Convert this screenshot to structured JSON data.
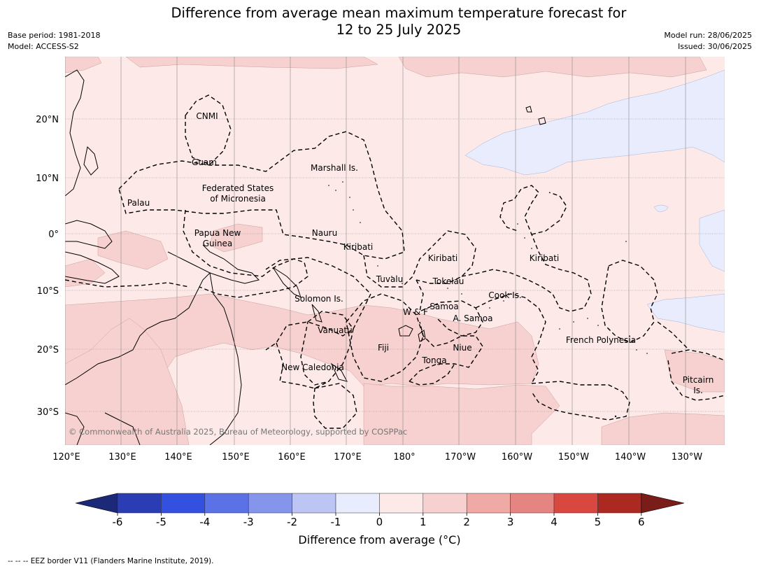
{
  "title_line1": "Difference from average mean maximum temperature forecast for",
  "title_line2": "12 to 25 July 2025",
  "base_period": "Base period: 1981-2018",
  "model": "Model: ACCESS-S2",
  "model_run": "Model run: 28/06/2025",
  "issued": "Issued: 30/06/2025",
  "copyright": "© Commonwealth of Australia 2025, Bureau of Meteorology, supported by COSPPac",
  "lat_labels": [
    "20°N",
    "10°N",
    "0°",
    "10°S",
    "20°S",
    "30°S"
  ],
  "lon_labels": [
    "120°E",
    "130°E",
    "140°E",
    "150°E",
    "160°E",
    "170°E",
    "180°",
    "170°W",
    "160°W",
    "150°W",
    "140°W",
    "130°W"
  ],
  "regions": {
    "cnmi": "CNMI",
    "guam": "Guam",
    "marshall": "Marshall Is.",
    "fsm1": "Federated States",
    "fsm2": "of Micronesia",
    "palau": "Palau",
    "png1": "Papua New",
    "png2": "Guinea",
    "nauru": "Nauru",
    "kiribati_w": "Kiribati",
    "kiribati_c": "Kiribati",
    "kiribati_e": "Kiribati",
    "tuvalu": "Tuvalu",
    "tokelau": "Tokelau",
    "solomon": "Solomon Is.",
    "wf": "W & F",
    "samoa": "Samoa",
    "asamoa": "A. Samoa",
    "cook": "Cook Is.",
    "vanuatu": "Vanuatu",
    "fiji": "Fiji",
    "niue": "Niue",
    "tonga": "Tonga",
    "newcal": "New Caledonia",
    "frpoly": "French Polynesia",
    "pitcairn1": "Pitcairn",
    "pitcairn2": "Is."
  },
  "colorbar": {
    "ticks": [
      "-6",
      "-5",
      "-4",
      "-3",
      "-2",
      "-1",
      "0",
      "1",
      "2",
      "3",
      "4",
      "5",
      "6"
    ],
    "colors": [
      "#2a3db5",
      "#3350e0",
      "#5a72e6",
      "#8595ec",
      "#bcc5f4",
      "#e8ecfc",
      "#fce9e8",
      "#f7d1cf",
      "#efaaa6",
      "#e58581",
      "#d94741",
      "#ab2920"
    ],
    "low_extend": "#1c2878",
    "high_extend": "#7a1c18",
    "label": "Difference from average (°C)"
  },
  "footer": "--  --  -- EEZ border V11 (Flanders Marine Institute, 2019)."
}
